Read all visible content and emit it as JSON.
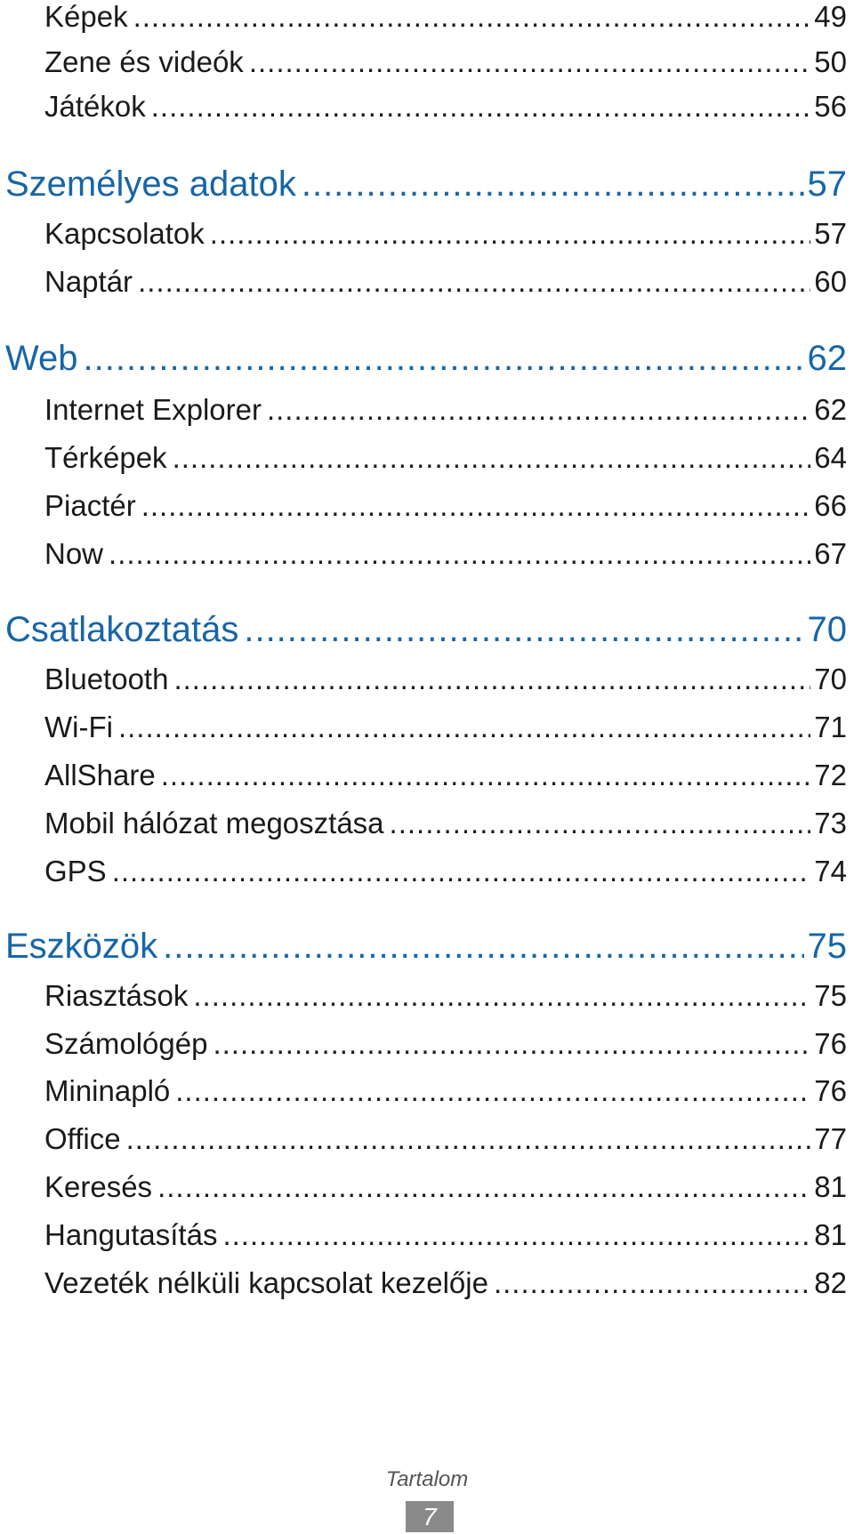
{
  "toc": {
    "rows": [
      {
        "label": "Képek",
        "page": "49"
      },
      {
        "label": "Zene és videók",
        "page": "50"
      },
      {
        "label": "Játékok",
        "page": "56"
      },
      {
        "label": "Személyes adatok",
        "page": "57"
      },
      {
        "label": "Kapcsolatok",
        "page": "57"
      },
      {
        "label": "Naptár",
        "page": "60"
      },
      {
        "label": "Web",
        "page": "62"
      },
      {
        "label": "Internet Explorer",
        "page": "62"
      },
      {
        "label": "Térképek",
        "page": "64"
      },
      {
        "label": "Piactér",
        "page": "66"
      },
      {
        "label": "Now",
        "page": "67"
      },
      {
        "label": "Csatlakoztatás",
        "page": "70"
      },
      {
        "label": "Bluetooth",
        "page": "70"
      },
      {
        "label": "Wi-Fi",
        "page": "71"
      },
      {
        "label": "AllShare",
        "page": "72"
      },
      {
        "label": "Mobil hálózat megosztása",
        "page": "73"
      },
      {
        "label": "GPS",
        "page": "74"
      },
      {
        "label": "Eszközök",
        "page": "75"
      },
      {
        "label": "Riasztások",
        "page": "75"
      },
      {
        "label": "Számológép",
        "page": "76"
      },
      {
        "label": "Mininapló",
        "page": "76"
      },
      {
        "label": "Office",
        "page": "77"
      },
      {
        "label": "Keresés",
        "page": "81"
      },
      {
        "label": "Hangutasítás",
        "page": "81"
      },
      {
        "label": "Vezeték nélküli kapcsolat kezelője",
        "page": "82"
      }
    ]
  },
  "footer": {
    "section_name": "Tartalom",
    "page_number": "7"
  },
  "colors": {
    "section_heading": "#1765a8",
    "entry_text": "#1a1a1a",
    "page_badge_bg": "#8a8a8a"
  }
}
